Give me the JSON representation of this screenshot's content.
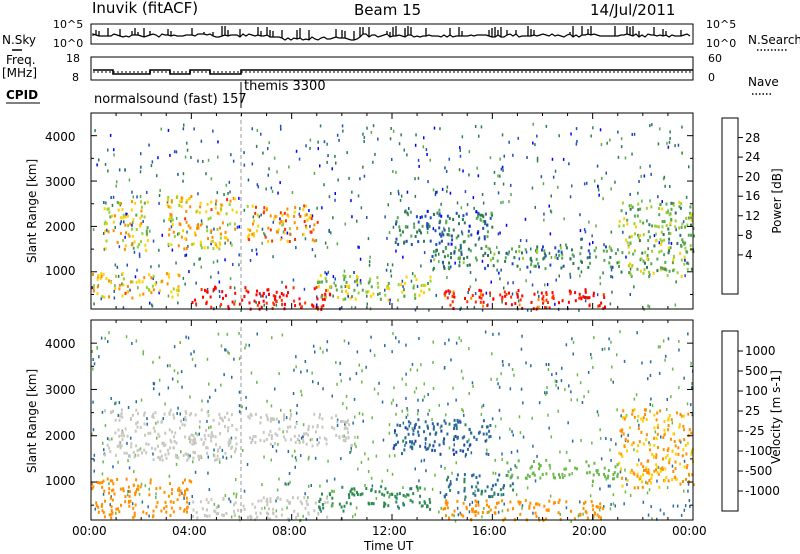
{
  "header": {
    "station": "Inuvik (fitACF)",
    "beam": "Beam 15",
    "date": "14/Jul/2011"
  },
  "panels": {
    "nsky_label": "N.Sky",
    "nsearch_label": "N.Search",
    "freq_label_1": "Freq.",
    "freq_label_2": "[MHz]",
    "nave_label": "Nave",
    "cpid_label": "CPID",
    "cpid_mode_1": "normalsound (fast) 157",
    "cpid_mode_2": "themis 3300",
    "noise_ticks_left": [
      "10^5",
      "10^0"
    ],
    "noise_ticks_right": [
      "10^5",
      "10^0"
    ],
    "freq_ticks": [
      "18",
      "8"
    ],
    "nave_ticks": [
      "60",
      "0"
    ]
  },
  "chart_data": [
    {
      "type": "heatmap",
      "name": "power",
      "ylabel": "Slant Range [km]",
      "ylim": [
        180,
        4500
      ],
      "yticks": [
        "1000",
        "2000",
        "3000",
        "4000"
      ],
      "colorbar_label": "Power [dB]",
      "colorbar_ticks": [
        "28",
        "24",
        "20",
        "16",
        "12",
        "8",
        "4"
      ],
      "colorbar_colors": [
        "#0000ff",
        "#1f4fb8",
        "#2e7a55",
        "#56a851",
        "#9ad035",
        "#ffd000",
        "#ff8c00",
        "#ff3000",
        "#ff0000"
      ],
      "regions": [
        {
          "x": [
            0.5,
            2.3
          ],
          "y": [
            1500,
            2600
          ],
          "value": 18
        },
        {
          "x": [
            3.0,
            5.8
          ],
          "y": [
            1500,
            2700
          ],
          "value": 20
        },
        {
          "x": [
            6.2,
            9.0
          ],
          "y": [
            1700,
            2500
          ],
          "value": 22
        },
        {
          "x": [
            0.0,
            3.5
          ],
          "y": [
            450,
            1000
          ],
          "value": 20
        },
        {
          "x": [
            4.0,
            9.5
          ],
          "y": [
            200,
            700
          ],
          "value": 30
        },
        {
          "x": [
            9.0,
            13.5
          ],
          "y": [
            400,
            950
          ],
          "value": 16
        },
        {
          "x": [
            14.0,
            20.5
          ],
          "y": [
            200,
            650
          ],
          "value": 28
        },
        {
          "x": [
            13.5,
            21.0
          ],
          "y": [
            1100,
            1600
          ],
          "value": 10
        },
        {
          "x": [
            12.0,
            16.0
          ],
          "y": [
            1600,
            2400
          ],
          "value": 8
        },
        {
          "x": [
            21.0,
            24.0
          ],
          "y": [
            900,
            2600
          ],
          "value": 14
        }
      ]
    },
    {
      "type": "heatmap",
      "name": "velocity",
      "ylabel": "Slant Range [km]",
      "ylim": [
        180,
        4500
      ],
      "yticks": [
        "1000",
        "2000",
        "3000",
        "4000"
      ],
      "xlabel": "Time UT",
      "xticks": [
        "00:00",
        "04:00",
        "08:00",
        "12:00",
        "16:00",
        "20:00",
        "00:00"
      ],
      "colorbar_label": "Velocity [m s-1]",
      "colorbar_ticks": [
        "1000",
        "500",
        "100",
        "25",
        "-25",
        "-100",
        "-500",
        "-1000"
      ],
      "colorbar_colors": [
        "#1f3fb0",
        "#2a6a9a",
        "#2e8a55",
        "#6ab84a",
        "#c8c8c0",
        "#ffd000",
        "#ff9000",
        "#ff4000",
        "#ff0000"
      ],
      "regions": [
        {
          "x": [
            0.5,
            5.8
          ],
          "y": [
            1500,
            2600
          ],
          "value": 0
        },
        {
          "x": [
            6.2,
            10.5
          ],
          "y": [
            1800,
            2500
          ],
          "value": 0
        },
        {
          "x": [
            0.0,
            4.0
          ],
          "y": [
            250,
            1100
          ],
          "value": -300
        },
        {
          "x": [
            4.0,
            9.5
          ],
          "y": [
            200,
            700
          ],
          "value": 0
        },
        {
          "x": [
            9.0,
            13.5
          ],
          "y": [
            400,
            950
          ],
          "value": 150
        },
        {
          "x": [
            14.0,
            20.5
          ],
          "y": [
            200,
            650
          ],
          "value": -300
        },
        {
          "x": [
            14.0,
            17.0
          ],
          "y": [
            700,
            1200
          ],
          "value": 600
        },
        {
          "x": [
            12.0,
            16.0
          ],
          "y": [
            1600,
            2400
          ],
          "value": 800
        },
        {
          "x": [
            21.0,
            24.0
          ],
          "y": [
            900,
            2600
          ],
          "value": -100
        },
        {
          "x": [
            16.5,
            21.0
          ],
          "y": [
            1100,
            1500
          ],
          "value": 50
        }
      ]
    }
  ]
}
